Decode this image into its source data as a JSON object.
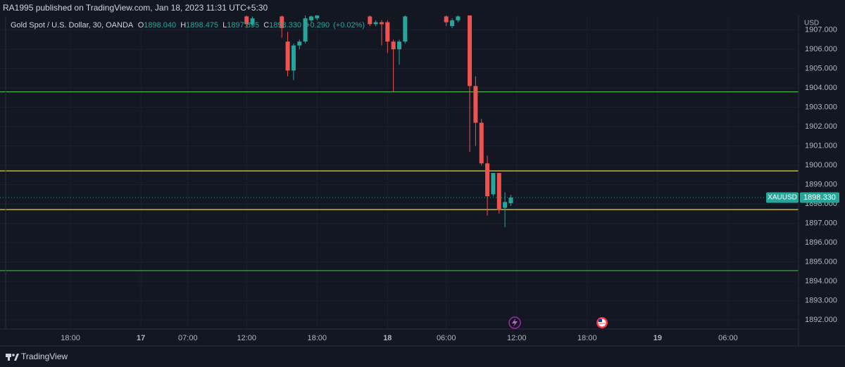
{
  "header": {
    "published": "RA1995 published on TradingView.com, Jan 18, 2023 11:31 UTC+5:30"
  },
  "footer": {
    "brand": "TradingView"
  },
  "chart_data": {
    "type": "candlestick",
    "title": "Gold Spot / U.S. Dollar, 30, OANDA",
    "ohlc": [
      {
        "key": "O",
        "value": 1898.04,
        "label": "1898.040"
      },
      {
        "key": "H",
        "value": 1898.475,
        "label": "1898.475"
      },
      {
        "key": "L",
        "value": 1897.895,
        "label": "1897.895"
      },
      {
        "key": "C",
        "value": 1898.33,
        "label": "1898.330"
      }
    ],
    "change": {
      "value": 0.29,
      "label": "+0.290"
    },
    "change_pct": {
      "value": 0.02,
      "label": "(+0.02%)"
    },
    "y_unit": "USD",
    "up_color": "#26a69a",
    "down_color": "#ef5350",
    "x": [
      42,
      43,
      48,
      49,
      50,
      51,
      52,
      53,
      54,
      63,
      64,
      65,
      66,
      67,
      68,
      69,
      76,
      77,
      78,
      80,
      81,
      82,
      83,
      84,
      85,
      86,
      87
    ],
    "open": [
      1907.7,
      1907.3,
      1907.7,
      1906.4,
      1904.9,
      1906.2,
      1906.4,
      1907.5,
      1907.6,
      1907.7,
      1907.3,
      1907.4,
      1907.4,
      1906.4,
      1906.0,
      1906.4,
      1907.7,
      1907.2,
      1907.5,
      1907.75,
      1904.1,
      1902.2,
      1900.1,
      1898.5,
      1899.6,
      1897.8,
      1898.04
    ],
    "high": [
      1907.75,
      1907.7,
      1907.75,
      1906.9,
      1906.3,
      1906.5,
      1907.75,
      1907.75,
      1907.75,
      1907.75,
      1907.5,
      1907.5,
      1907.5,
      1906.5,
      1906.5,
      1907.75,
      1907.75,
      1907.6,
      1907.75,
      1907.75,
      1904.6,
      1902.4,
      1900.5,
      1899.6,
      1899.6,
      1898.6,
      1898.475
    ],
    "low": [
      1907.1,
      1907.2,
      1906.6,
      1904.6,
      1904.4,
      1906.0,
      1906.3,
      1907.4,
      1907.5,
      1907.2,
      1907.2,
      1906.2,
      1905.8,
      1903.8,
      1905.2,
      1906.3,
      1907.2,
      1907.1,
      1907.4,
      1900.7,
      1901.0,
      1900.0,
      1897.4,
      1898.4,
      1897.5,
      1896.8,
      1897.895
    ],
    "close": [
      1907.3,
      1907.6,
      1907.1,
      1904.9,
      1906.2,
      1906.4,
      1907.6,
      1907.7,
      1907.75,
      1907.3,
      1907.4,
      1907.3,
      1906.4,
      1906.0,
      1906.4,
      1907.7,
      1907.4,
      1907.5,
      1907.7,
      1904.1,
      1902.2,
      1900.1,
      1898.4,
      1899.6,
      1897.7,
      1898.1,
      1898.33
    ],
    "xlim": [
      0,
      136
    ],
    "xticks": [
      {
        "value": 12,
        "label": "18:00"
      },
      {
        "value": 24,
        "label": "17"
      },
      {
        "value": 32,
        "label": "07:00"
      },
      {
        "value": 42,
        "label": "12:00"
      },
      {
        "value": 54,
        "label": "18:00"
      },
      {
        "value": 66,
        "label": "18"
      },
      {
        "value": 76,
        "label": "06:00"
      },
      {
        "value": 88,
        "label": "12:00"
      },
      {
        "value": 100,
        "label": "18:00"
      },
      {
        "value": 112,
        "label": "19"
      },
      {
        "value": 124,
        "label": "06:00"
      }
    ],
    "ylim": [
      1891.53,
      1907.75
    ],
    "yticks": [
      {
        "value": 1892,
        "label": "1892.000"
      },
      {
        "value": 1893,
        "label": "1893.000"
      },
      {
        "value": 1894,
        "label": "1894.000"
      },
      {
        "value": 1895,
        "label": "1895.000"
      },
      {
        "value": 1896,
        "label": "1896.000"
      },
      {
        "value": 1897,
        "label": "1897.000"
      },
      {
        "value": 1898,
        "label": "1898.000"
      },
      {
        "value": 1899,
        "label": "1899.000"
      },
      {
        "value": 1900,
        "label": "1900.000"
      },
      {
        "value": 1901,
        "label": "1901.000"
      },
      {
        "value": 1902,
        "label": "1902.000"
      },
      {
        "value": 1903,
        "label": "1903.000"
      },
      {
        "value": 1904,
        "label": "1904.000"
      },
      {
        "value": 1905,
        "label": "1905.000"
      },
      {
        "value": 1906,
        "label": "1906.000"
      },
      {
        "value": 1907,
        "label": "1907.000"
      }
    ],
    "grid": true,
    "hlines": [
      {
        "value": 1903.8,
        "color": "#4caf50"
      },
      {
        "value": 1899.71,
        "color": "#ffeb3b"
      },
      {
        "value": 1897.71,
        "color": "#ffeb3b"
      },
      {
        "value": 1894.55,
        "color": "#4caf50"
      }
    ],
    "last_price": {
      "symbol": "XAUUSD",
      "value": 1898.33,
      "label": "1898.330",
      "color": "#26a69a"
    }
  }
}
